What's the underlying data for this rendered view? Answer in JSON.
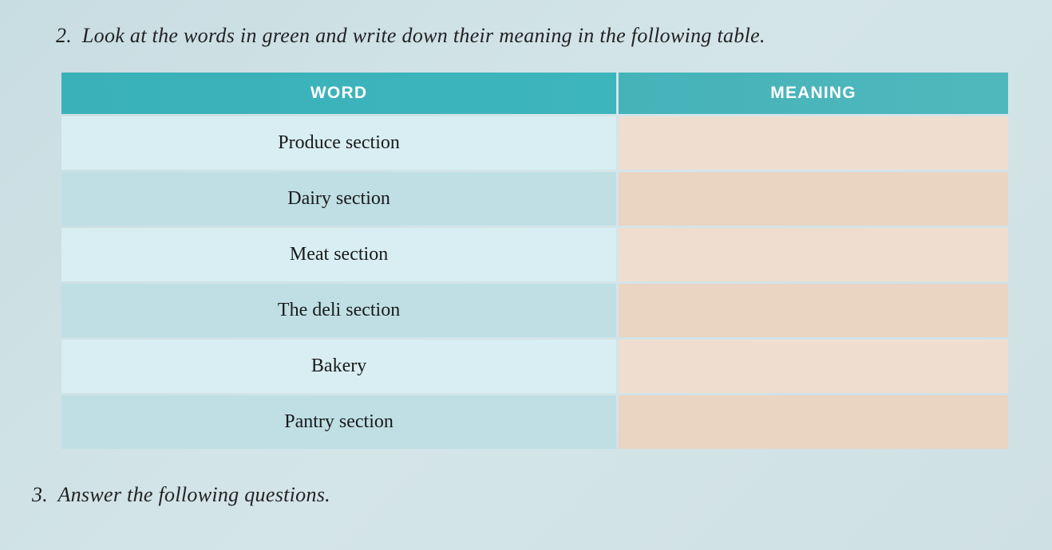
{
  "instruction": {
    "number": "2.",
    "text": "Look at the words in green and write down their meaning in the following table."
  },
  "table": {
    "type": "table",
    "columns": [
      "WORD",
      "MEANING"
    ],
    "header_bg_colors": [
      "#3ab1b9",
      "#45b3b9"
    ],
    "header_text_color": "#ffffff",
    "header_fontsize": 21,
    "cell_fontsize": 24,
    "cell_font": "Georgia, serif",
    "word_col_odd_bg": "#d8eef2",
    "word_col_even_bg": "#bfdfe5",
    "meaning_col_odd_bg": "#efded0",
    "meaning_col_even_bg": "#ead4c2",
    "row_spacing": 3,
    "rows": [
      {
        "word": "Produce section",
        "meaning": ""
      },
      {
        "word": "Dairy section",
        "meaning": ""
      },
      {
        "word": "Meat section",
        "meaning": ""
      },
      {
        "word": "The deli section",
        "meaning": ""
      },
      {
        "word": "Bakery",
        "meaning": ""
      },
      {
        "word": "Pantry section",
        "meaning": ""
      }
    ]
  },
  "footer_instruction": {
    "number": "3.",
    "text": "Answer the following questions."
  },
  "page_bg_gradient": [
    "#c8dde2",
    "#d4e5e8",
    "#cfe0e4"
  ]
}
